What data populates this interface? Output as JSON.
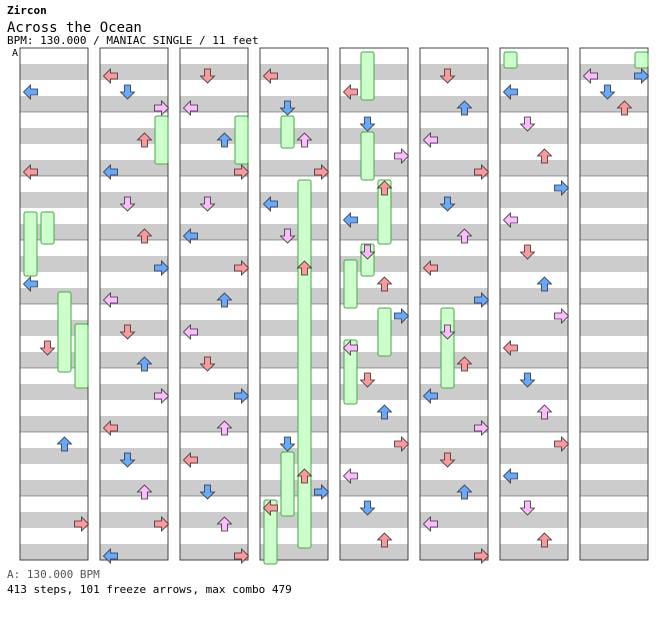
{
  "song": {
    "artist": "Zircon",
    "title": "Across the Ocean",
    "meta": "BPM: 130.000 / MANIAC SINGLE / 11 feet",
    "section_label": "A"
  },
  "footer": {
    "bpm_line": "A: 130.000 BPM",
    "stats_line": "413 steps, 101 freeze arrows, max combo 479"
  },
  "colors": {
    "stripe_gray": "#cccccc",
    "border": "#444444",
    "freeze_fill": "#ccffcc",
    "freeze_border": "#44aa44",
    "quarter_red": "#ff9999",
    "eighth_blue": "#66aaff",
    "sixteenth_pink": "#ffbbff",
    "lane_arrow_green": "#99ee99"
  },
  "chart_data": {
    "type": "step-chart",
    "columns": 8,
    "lanes": [
      "left",
      "down",
      "up",
      "right"
    ],
    "notes": [
      [
        0,
        0,
        2,
        1
      ],
      [
        0,
        0,
        7,
        0
      ],
      [
        0,
        0,
        14,
        1
      ],
      [
        0,
        1,
        18,
        0
      ],
      [
        0,
        2,
        24,
        1
      ],
      [
        0,
        3,
        29,
        0
      ],
      [
        1,
        0,
        1,
        0
      ],
      [
        1,
        1,
        2,
        1
      ],
      [
        1,
        3,
        3,
        2
      ],
      [
        1,
        2,
        5,
        0
      ],
      [
        1,
        0,
        7,
        1
      ],
      [
        1,
        1,
        9,
        2
      ],
      [
        1,
        2,
        11,
        0
      ],
      [
        1,
        3,
        13,
        1
      ],
      [
        1,
        0,
        15,
        2
      ],
      [
        1,
        1,
        17,
        0
      ],
      [
        1,
        2,
        19,
        1
      ],
      [
        1,
        3,
        21,
        2
      ],
      [
        1,
        0,
        23,
        0
      ],
      [
        1,
        1,
        25,
        1
      ],
      [
        1,
        2,
        27,
        2
      ],
      [
        1,
        3,
        29,
        0
      ],
      [
        1,
        0,
        31,
        1
      ],
      [
        2,
        1,
        1,
        0
      ],
      [
        2,
        0,
        3,
        2
      ],
      [
        2,
        2,
        5,
        1
      ],
      [
        2,
        3,
        7,
        0
      ],
      [
        2,
        1,
        9,
        2
      ],
      [
        2,
        0,
        11,
        1
      ],
      [
        2,
        3,
        13,
        0
      ],
      [
        2,
        2,
        15,
        1
      ],
      [
        2,
        0,
        17,
        2
      ],
      [
        2,
        1,
        19,
        0
      ],
      [
        2,
        3,
        21,
        1
      ],
      [
        2,
        2,
        23,
        2
      ],
      [
        2,
        0,
        25,
        0
      ],
      [
        2,
        1,
        27,
        1
      ],
      [
        2,
        2,
        29,
        2
      ],
      [
        2,
        3,
        31,
        0
      ],
      [
        3,
        0,
        1,
        0
      ],
      [
        3,
        1,
        3,
        1
      ],
      [
        3,
        2,
        5,
        2
      ],
      [
        3,
        3,
        7,
        0
      ],
      [
        3,
        0,
        9,
        1
      ],
      [
        3,
        1,
        11,
        2
      ],
      [
        3,
        2,
        13,
        0
      ],
      [
        3,
        1,
        24,
        1
      ],
      [
        3,
        2,
        26,
        0
      ],
      [
        3,
        3,
        27,
        1
      ],
      [
        3,
        0,
        28,
        0
      ],
      [
        4,
        0,
        2,
        0
      ],
      [
        4,
        1,
        4,
        1
      ],
      [
        4,
        3,
        6,
        2
      ],
      [
        4,
        2,
        8,
        0
      ],
      [
        4,
        0,
        10,
        1
      ],
      [
        4,
        1,
        12,
        2
      ],
      [
        4,
        2,
        14,
        0
      ],
      [
        4,
        3,
        16,
        1
      ],
      [
        4,
        0,
        18,
        2
      ],
      [
        4,
        1,
        20,
        0
      ],
      [
        4,
        2,
        22,
        1
      ],
      [
        4,
        3,
        24,
        0
      ],
      [
        4,
        0,
        26,
        2
      ],
      [
        4,
        1,
        28,
        1
      ],
      [
        4,
        2,
        30,
        0
      ],
      [
        5,
        1,
        1,
        0
      ],
      [
        5,
        2,
        3,
        1
      ],
      [
        5,
        0,
        5,
        2
      ],
      [
        5,
        3,
        7,
        0
      ],
      [
        5,
        1,
        9,
        1
      ],
      [
        5,
        2,
        11,
        2
      ],
      [
        5,
        0,
        13,
        0
      ],
      [
        5,
        3,
        15,
        1
      ],
      [
        5,
        1,
        17,
        2
      ],
      [
        5,
        2,
        19,
        0
      ],
      [
        5,
        0,
        21,
        1
      ],
      [
        5,
        3,
        23,
        2
      ],
      [
        5,
        1,
        25,
        0
      ],
      [
        5,
        2,
        27,
        1
      ],
      [
        5,
        0,
        29,
        2
      ],
      [
        5,
        3,
        31,
        0
      ],
      [
        6,
        0,
        2,
        1
      ],
      [
        6,
        1,
        4,
        2
      ],
      [
        6,
        2,
        6,
        0
      ],
      [
        6,
        3,
        8,
        1
      ],
      [
        6,
        0,
        10,
        2
      ],
      [
        6,
        1,
        12,
        0
      ],
      [
        6,
        2,
        14,
        1
      ],
      [
        6,
        3,
        16,
        2
      ],
      [
        6,
        0,
        18,
        0
      ],
      [
        6,
        1,
        20,
        1
      ],
      [
        6,
        2,
        22,
        2
      ],
      [
        6,
        3,
        24,
        0
      ],
      [
        6,
        0,
        26,
        1
      ],
      [
        6,
        1,
        28,
        2
      ],
      [
        6,
        2,
        30,
        0
      ],
      [
        7,
        0,
        1,
        2
      ],
      [
        7,
        1,
        2,
        1
      ],
      [
        7,
        2,
        3,
        0
      ],
      [
        7,
        3,
        1,
        1
      ]
    ],
    "freezes": [
      [
        0,
        0,
        10,
        14
      ],
      [
        0,
        1,
        10,
        12
      ],
      [
        0,
        2,
        15,
        20
      ],
      [
        0,
        3,
        17,
        21
      ],
      [
        1,
        3,
        4,
        7
      ],
      [
        2,
        3,
        4,
        7
      ],
      [
        3,
        1,
        4,
        6
      ],
      [
        3,
        2,
        8,
        31
      ],
      [
        3,
        1,
        25,
        29
      ],
      [
        3,
        0,
        28,
        32
      ],
      [
        4,
        1,
        0,
        3
      ],
      [
        4,
        1,
        5,
        8
      ],
      [
        4,
        2,
        8,
        12
      ],
      [
        4,
        1,
        12,
        14
      ],
      [
        4,
        0,
        13,
        16
      ],
      [
        4,
        2,
        16,
        19
      ],
      [
        4,
        0,
        18,
        22
      ],
      [
        5,
        1,
        16,
        21
      ],
      [
        6,
        0,
        0,
        1
      ],
      [
        7,
        3,
        0,
        1
      ]
    ]
  }
}
